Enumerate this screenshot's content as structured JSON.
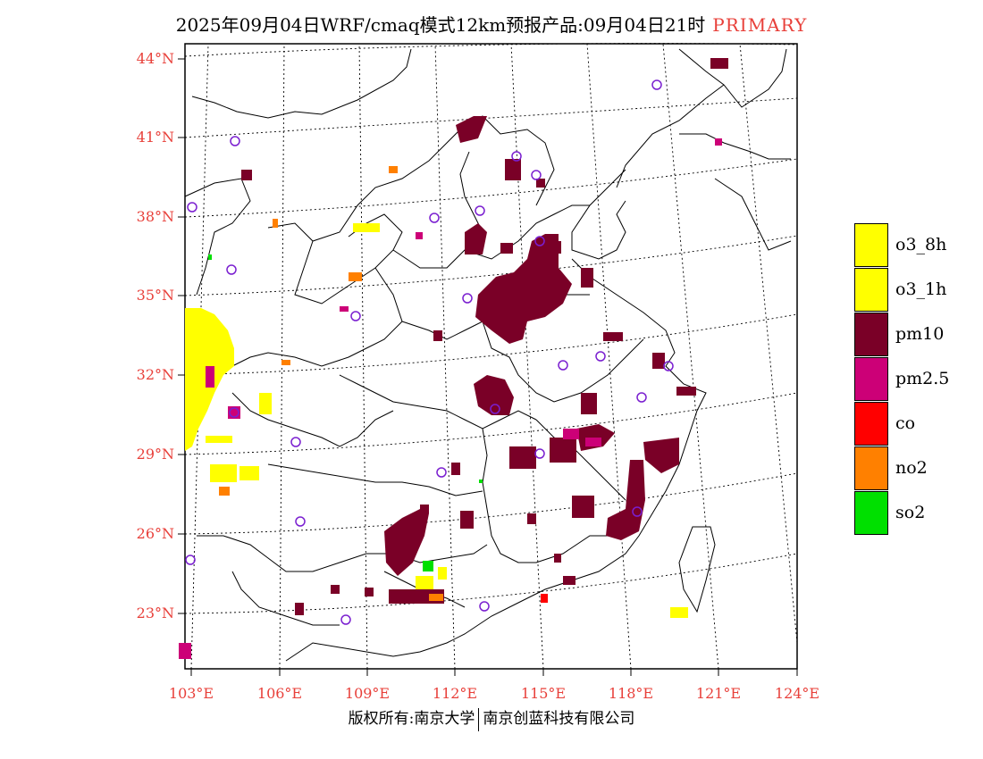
{
  "header": {
    "title": "2025年09月04日WRF/cmaq模式12km预报产品:09月04日21时",
    "tag": "PRIMARY"
  },
  "axes": {
    "latitudes": [
      "44°N",
      "41°N",
      "38°N",
      "35°N",
      "32°N",
      "29°N",
      "26°N",
      "23°N"
    ],
    "longitudes": [
      "103°E",
      "106°E",
      "109°E",
      "112°E",
      "115°E",
      "118°E",
      "121°E",
      "124°E"
    ]
  },
  "legend": {
    "items": [
      {
        "label": "o3_8h",
        "color": "#ffff00"
      },
      {
        "label": "o3_1h",
        "color": "#ffff00"
      },
      {
        "label": "pm10",
        "color": "#7a0027"
      },
      {
        "label": "pm2.5",
        "color": "#cc0077"
      },
      {
        "label": "co",
        "color": "#ff0000"
      },
      {
        "label": "no2",
        "color": "#ff8000"
      },
      {
        "label": "so2",
        "color": "#00e000"
      }
    ]
  },
  "footer": {
    "left": "版权所有:南京大学",
    "right": "南京创蓝科技有限公司"
  },
  "colors": {
    "pm10": "#7a0027",
    "pm25": "#cc0077",
    "o3": "#ffff00",
    "no2": "#ff8000",
    "so2": "#00e000",
    "co": "#ff0000",
    "station": "#7a1fd0",
    "axis_label": "#e8403a"
  }
}
